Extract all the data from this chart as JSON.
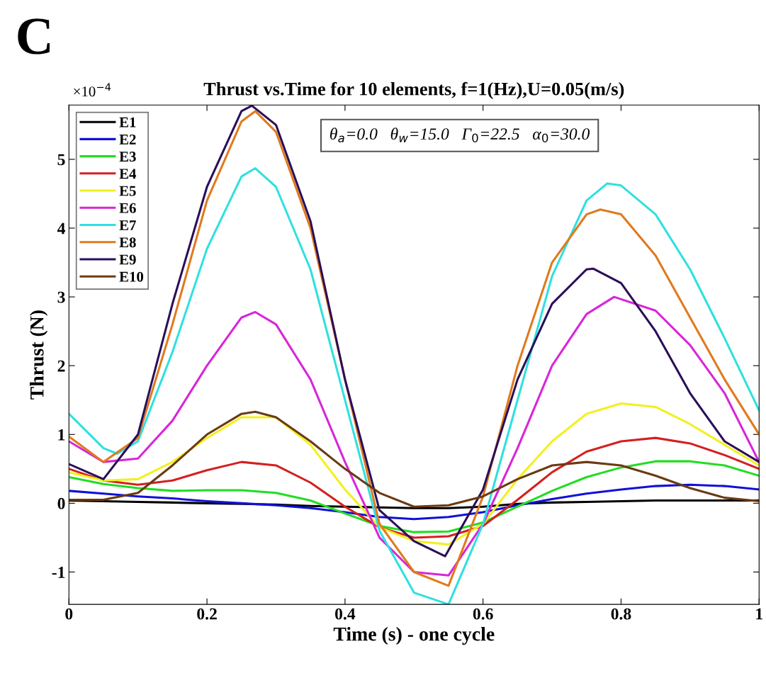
{
  "chart_data": {
    "type": "line",
    "title": "Thrust vs.Time for 10 elements, f=1(Hz),U=0.05(m/s)",
    "xlabel": "Time (s) - one cycle",
    "ylabel": "Thrust (N)",
    "annotations": [
      "C",
      "×10$^{−4}$",
      "θ$_{a}$=0.0   θ$_{w}$=15.0   Γ$_{0}$=22.5   α$_{0}$=30.0"
    ],
    "x": [
      0,
      0.05,
      0.1,
      0.15,
      0.2,
      0.25,
      0.3,
      0.35,
      0.4,
      0.45,
      0.5,
      0.55,
      0.6,
      0.65,
      0.7,
      0.75,
      0.8,
      0.85,
      0.9,
      0.95,
      1
    ],
    "xlim": [
      0,
      1
    ],
    "xticks": [
      0,
      0.2,
      0.4,
      0.6,
      0.8,
      1
    ],
    "ylim": [
      -1.47,
      5.79
    ],
    "yticks": [
      -1,
      0,
      1,
      2,
      3,
      4,
      5
    ],
    "grid": false,
    "legend": "top left",
    "line_style": "solid",
    "marker": "none",
    "series": [
      {
        "name": "E1",
        "color": "#000000",
        "values": [
          0.04,
          0.03,
          0.02,
          0.01,
          0.0,
          -0.01,
          -0.02,
          -0.04,
          -0.05,
          -0.06,
          -0.07,
          -0.07,
          -0.05,
          -0.01,
          0.01,
          0.02,
          0.03,
          0.04,
          0.04,
          0.04,
          0.04
        ]
      },
      {
        "name": "E2",
        "color": "#1010d8",
        "values": [
          0.18,
          0.14,
          0.1,
          0.07,
          0.03,
          0.0,
          -0.03,
          -0.07,
          -0.13,
          -0.2,
          -0.23,
          -0.2,
          -0.13,
          -0.03,
          0.06,
          0.14,
          0.2,
          0.25,
          0.27,
          0.25,
          0.2
        ]
      },
      {
        "name": "E3",
        "color": "#22dd22",
        "values": [
          0.38,
          0.28,
          0.22,
          0.18,
          0.19,
          0.19,
          0.15,
          0.04,
          -0.15,
          -0.33,
          -0.42,
          -0.41,
          -0.28,
          -0.05,
          0.18,
          0.38,
          0.52,
          0.61,
          0.61,
          0.55,
          0.4
        ]
      },
      {
        "name": "E4",
        "color": "#d42020",
        "values": [
          0.5,
          0.33,
          0.27,
          0.33,
          0.48,
          0.6,
          0.55,
          0.3,
          -0.05,
          -0.35,
          -0.5,
          -0.48,
          -0.33,
          0.05,
          0.45,
          0.75,
          0.9,
          0.95,
          0.87,
          0.7,
          0.5
        ]
      },
      {
        "name": "E5",
        "color": "#f2f020",
        "values": [
          0.45,
          0.33,
          0.35,
          0.6,
          0.95,
          1.25,
          1.25,
          0.85,
          0.2,
          -0.35,
          -0.55,
          -0.6,
          -0.3,
          0.35,
          0.9,
          1.3,
          1.45,
          1.4,
          1.15,
          0.85,
          0.55
        ]
      },
      {
        "name": "E6",
        "color": "#d826d8",
        "x": [
          0,
          0.05,
          0.1,
          0.15,
          0.2,
          0.25,
          0.27,
          0.3,
          0.35,
          0.4,
          0.45,
          0.5,
          0.55,
          0.6,
          0.65,
          0.7,
          0.75,
          0.79,
          0.85,
          0.9,
          0.95,
          1
        ],
        "values": [
          0.9,
          0.6,
          0.65,
          1.2,
          2.0,
          2.7,
          2.78,
          2.6,
          1.8,
          0.6,
          -0.5,
          -1.0,
          -1.05,
          -0.3,
          0.8,
          2.0,
          2.75,
          3.0,
          2.8,
          2.3,
          1.6,
          0.6
        ]
      },
      {
        "name": "E7",
        "color": "#30e0e0",
        "x": [
          0,
          0.05,
          0.07,
          0.1,
          0.15,
          0.2,
          0.25,
          0.27,
          0.3,
          0.35,
          0.4,
          0.45,
          0.5,
          0.55,
          0.6,
          0.65,
          0.7,
          0.75,
          0.78,
          0.8,
          0.85,
          0.9,
          0.95,
          1
        ],
        "values": [
          1.3,
          0.8,
          0.72,
          0.9,
          2.2,
          3.7,
          4.75,
          4.87,
          4.6,
          3.4,
          1.5,
          -0.4,
          -1.3,
          -1.47,
          -0.3,
          1.5,
          3.3,
          4.4,
          4.65,
          4.62,
          4.2,
          3.4,
          2.4,
          1.35
        ]
      },
      {
        "name": "E8",
        "color": "#e07a1c",
        "x": [
          0,
          0.05,
          0.1,
          0.15,
          0.2,
          0.25,
          0.27,
          0.3,
          0.35,
          0.4,
          0.45,
          0.5,
          0.55,
          0.6,
          0.65,
          0.7,
          0.75,
          0.77,
          0.8,
          0.85,
          0.9,
          0.95,
          1
        ],
        "values": [
          0.97,
          0.6,
          0.95,
          2.6,
          4.4,
          5.55,
          5.7,
          5.4,
          4.0,
          1.8,
          -0.3,
          -1.0,
          -1.2,
          0.1,
          2.0,
          3.5,
          4.2,
          4.27,
          4.2,
          3.6,
          2.7,
          1.8,
          1.0
        ]
      },
      {
        "name": "E9",
        "color": "#2a0f5a",
        "x": [
          0,
          0.05,
          0.1,
          0.15,
          0.2,
          0.25,
          0.265,
          0.3,
          0.35,
          0.4,
          0.45,
          0.5,
          0.545,
          0.6,
          0.65,
          0.7,
          0.75,
          0.76,
          0.8,
          0.85,
          0.9,
          0.95,
          1
        ],
        "values": [
          0.57,
          0.35,
          1.0,
          2.9,
          4.6,
          5.7,
          5.78,
          5.5,
          4.1,
          1.8,
          -0.1,
          -0.55,
          -0.77,
          0.2,
          1.8,
          2.9,
          3.4,
          3.41,
          3.2,
          2.5,
          1.6,
          0.9,
          0.6
        ]
      },
      {
        "name": "E10",
        "color": "#6b3a12",
        "x": [
          0,
          0.05,
          0.1,
          0.15,
          0.2,
          0.25,
          0.27,
          0.3,
          0.35,
          0.4,
          0.45,
          0.5,
          0.55,
          0.6,
          0.65,
          0.7,
          0.75,
          0.8,
          0.85,
          0.9,
          0.95,
          1
        ],
        "values": [
          0.05,
          0.05,
          0.15,
          0.55,
          1.0,
          1.3,
          1.33,
          1.25,
          0.9,
          0.5,
          0.15,
          -0.05,
          -0.03,
          0.1,
          0.35,
          0.55,
          0.6,
          0.55,
          0.4,
          0.22,
          0.08,
          0.03
        ]
      }
    ]
  }
}
